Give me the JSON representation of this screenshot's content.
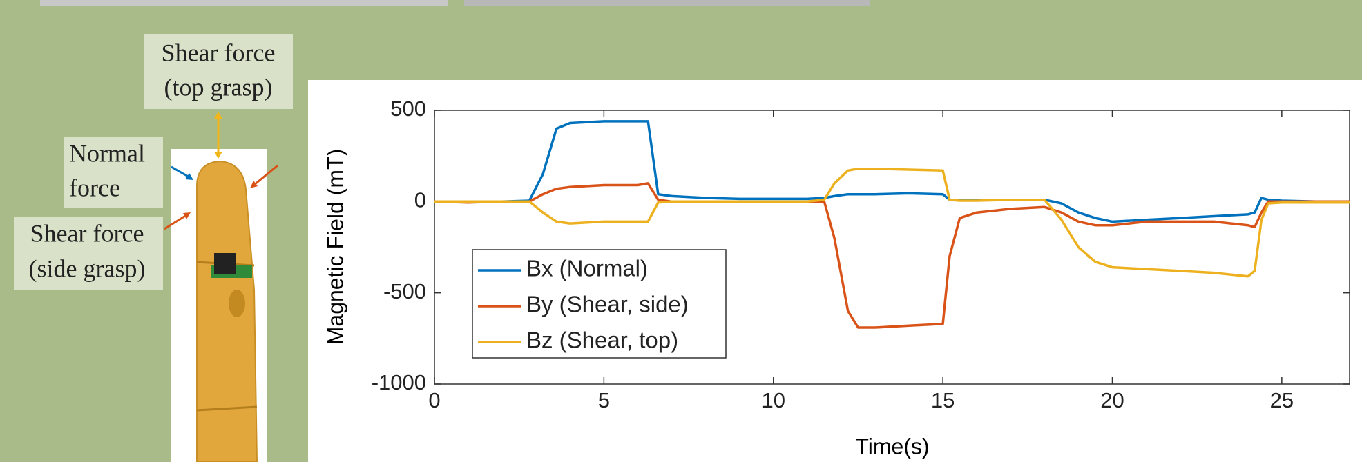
{
  "diagram": {
    "labels": [
      {
        "lines": [
          "Shear force",
          "(top grasp)"
        ]
      },
      {
        "lines": [
          "Normal",
          "force"
        ]
      },
      {
        "lines": [
          "Shear force",
          "(side grasp)"
        ]
      }
    ]
  },
  "chart_data": {
    "type": "line",
    "x_label": "Time(s)",
    "y_label": "Magnetic Field (mT)",
    "x": [
      0,
      1,
      2,
      2.8,
      3.2,
      3.6,
      4,
      5,
      6,
      6.3,
      6.6,
      7,
      8,
      9,
      10,
      11,
      11.5,
      11.8,
      12.2,
      12.5,
      13,
      14,
      15,
      15.2,
      15.5,
      16,
      17,
      18,
      18.5,
      19,
      19.5,
      20,
      21,
      22,
      23,
      24,
      24.2,
      24.4,
      24.6,
      25,
      26,
      27
    ],
    "series": [
      {
        "name": "Bx (Normal)",
        "color": "#0072bd",
        "values": [
          0,
          0,
          0,
          5,
          150,
          400,
          430,
          440,
          440,
          440,
          40,
          30,
          20,
          15,
          15,
          15,
          20,
          30,
          40,
          40,
          40,
          45,
          40,
          10,
          10,
          10,
          10,
          10,
          -10,
          -60,
          -90,
          -110,
          -100,
          -90,
          -80,
          -70,
          -60,
          20,
          10,
          5,
          0,
          0
        ]
      },
      {
        "name": "By (Shear, side)",
        "color": "#d95319",
        "values": [
          0,
          -5,
          0,
          0,
          40,
          70,
          80,
          90,
          90,
          100,
          10,
          0,
          0,
          0,
          0,
          0,
          0,
          -200,
          -600,
          -690,
          -690,
          -680,
          -670,
          -300,
          -90,
          -60,
          -40,
          -30,
          -60,
          -110,
          -130,
          -130,
          -110,
          -110,
          -110,
          -130,
          -140,
          -60,
          0,
          0,
          0,
          0
        ]
      },
      {
        "name": "Bz (Shear, top)",
        "color": "#edb120",
        "values": [
          0,
          0,
          0,
          0,
          -60,
          -110,
          -120,
          -110,
          -110,
          -110,
          -5,
          0,
          0,
          0,
          0,
          0,
          10,
          100,
          170,
          180,
          180,
          175,
          170,
          10,
          5,
          5,
          10,
          10,
          -100,
          -250,
          -330,
          -360,
          -370,
          -380,
          -390,
          -410,
          -380,
          -100,
          -10,
          -5,
          -5,
          -5
        ]
      }
    ],
    "xlim": [
      0,
      27
    ],
    "xticks": [
      0,
      5,
      10,
      15,
      20,
      25
    ],
    "ylim": [
      -1000,
      500
    ],
    "yticks": [
      -1000,
      -500,
      0,
      500
    ],
    "grid": false,
    "legend": "lower left"
  }
}
